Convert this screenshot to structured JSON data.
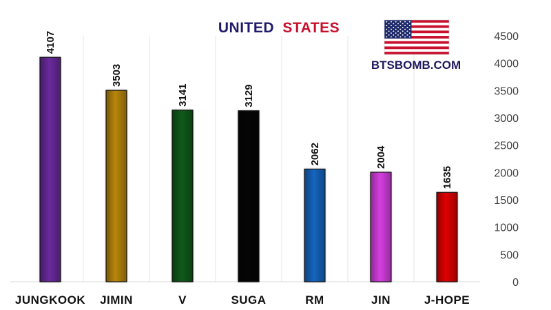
{
  "chart_data": {
    "type": "bar",
    "title_parts": [
      {
        "text": "UNITED",
        "color": "#1f1a6b"
      },
      {
        "text": "STATES",
        "color": "#c8102e"
      }
    ],
    "watermark": "BTSBOMB.COM",
    "categories": [
      "JUNGKOOK",
      "JIMIN",
      "V",
      "SUGA",
      "RM",
      "JIN",
      "J-HOPE"
    ],
    "values": [
      4107,
      3503,
      3141,
      3129,
      2062,
      2004,
      1635
    ],
    "colors": [
      "#6a2a9c",
      "#b8860b",
      "#0f5a1a",
      "#050505",
      "#1565c0",
      "#d63fe0",
      "#e00000"
    ],
    "data_labels": [
      "4107",
      "3503",
      "3141",
      "3129",
      "2062",
      "2004",
      "1635"
    ],
    "y_ticks": [
      0,
      500,
      1000,
      1500,
      2000,
      2500,
      3000,
      3500,
      4000,
      4500
    ],
    "ylim": [
      0,
      4500
    ],
    "y_axis_position": "right",
    "grid": "vertical",
    "legend": "none",
    "flag_icon": "us-flag-icon"
  }
}
